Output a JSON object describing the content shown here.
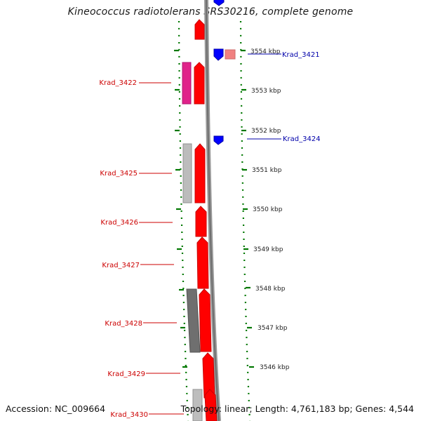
{
  "title": "Kineococcus radiotolerans SRS30216, complete genome",
  "accession_label": "Accession: NC_009664",
  "topology_label": "Topology: linear; Length: 4,761,183 bp; Genes: 4,544",
  "colors": {
    "forward_gene": "#ff0000",
    "reverse_gene": "#0000ff",
    "forward_label": "#cc0000",
    "reverse_label": "#0000aa",
    "tick": "#007700",
    "backbone": "#888888"
  },
  "ruler": {
    "unit": "kbp",
    "ticks": [
      {
        "label": "3554 kbp"
      },
      {
        "label": "3553 kbp"
      },
      {
        "label": "3552 kbp"
      },
      {
        "label": "3551 kbp"
      },
      {
        "label": "3550 kbp"
      },
      {
        "label": "3549 kbp"
      },
      {
        "label": "3548 kbp"
      },
      {
        "label": "3547 kbp"
      },
      {
        "label": "3546 kbp"
      }
    ]
  },
  "genes": {
    "forward": [
      {
        "name": "Krad_3422"
      },
      {
        "name": "Krad_3425"
      },
      {
        "name": "Krad_3426"
      },
      {
        "name": "Krad_3427"
      },
      {
        "name": "Krad_3428"
      },
      {
        "name": "Krad_3429"
      },
      {
        "name": "Krad_3430"
      }
    ],
    "reverse": [
      {
        "name": "Krad_3421"
      },
      {
        "name": "Krad_3424"
      }
    ]
  }
}
